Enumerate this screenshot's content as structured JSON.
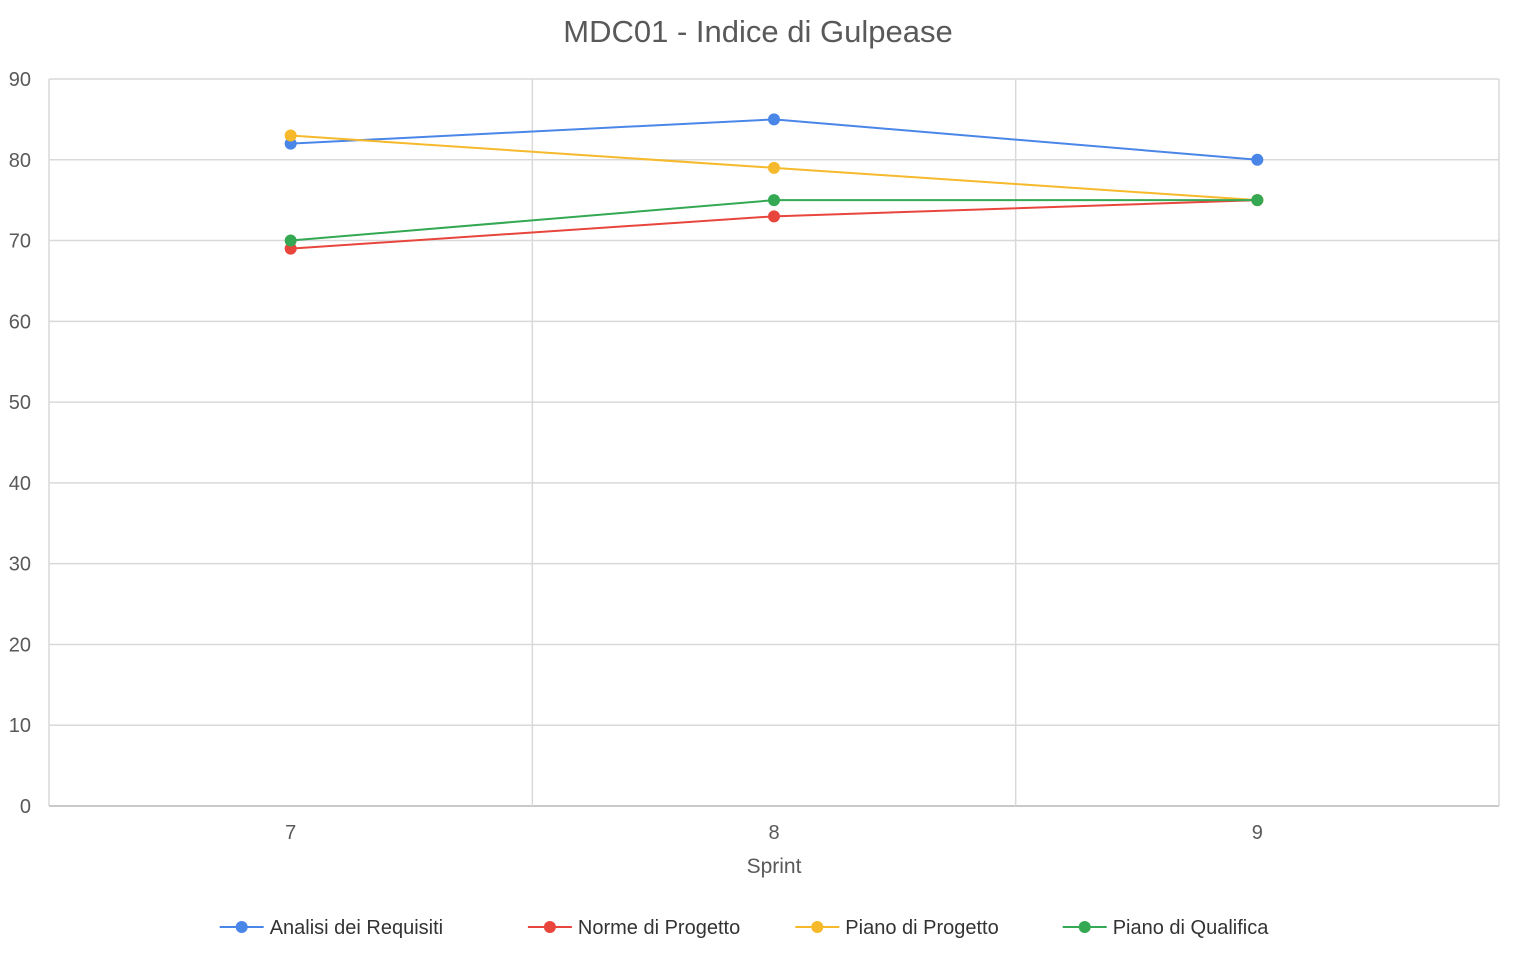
{
  "chart_data": {
    "type": "line",
    "title": "MDC01 - Indice di Gulpease",
    "xlabel": "Sprint",
    "ylabel": "",
    "categories": [
      "7",
      "8",
      "9"
    ],
    "ylim": [
      0,
      90
    ],
    "yticks": [
      0,
      10,
      20,
      30,
      40,
      50,
      60,
      70,
      80,
      90
    ],
    "grid": true,
    "legend_position": "bottom",
    "series": [
      {
        "name": "Analisi dei Requisiti",
        "color": "#4a86e8",
        "values": [
          82,
          85,
          80
        ]
      },
      {
        "name": "Norme di Progetto",
        "color": "#e8453c",
        "values": [
          69,
          73,
          75
        ]
      },
      {
        "name": "Piano di Progetto",
        "color": "#f6b92b",
        "values": [
          83,
          79,
          75
        ]
      },
      {
        "name": "Piano di Qualifica",
        "color": "#34a853",
        "values": [
          70,
          75,
          75
        ]
      }
    ]
  }
}
